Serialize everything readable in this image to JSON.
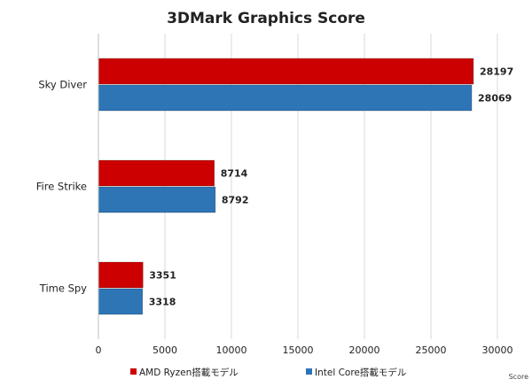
{
  "chart_data": {
    "type": "bar",
    "orientation": "horizontal",
    "title": "3DMark Graphics Score",
    "categories": [
      "Sky Diver",
      "Fire Strike",
      "Time Spy"
    ],
    "series": [
      {
        "name": "AMD Ryzen搭載モデル",
        "values": [
          28197,
          8714,
          3351
        ],
        "color": "#cc0000"
      },
      {
        "name": "Intel Core搭載モデル",
        "values": [
          28069,
          8792,
          3318
        ],
        "color": "#2e75b6"
      }
    ],
    "xlim": [
      0,
      30000
    ],
    "xticks": [
      0,
      5000,
      10000,
      15000,
      20000,
      25000,
      30000
    ],
    "xlabel": "Score",
    "grid": true,
    "legend": "bottom",
    "data_labels": true
  }
}
